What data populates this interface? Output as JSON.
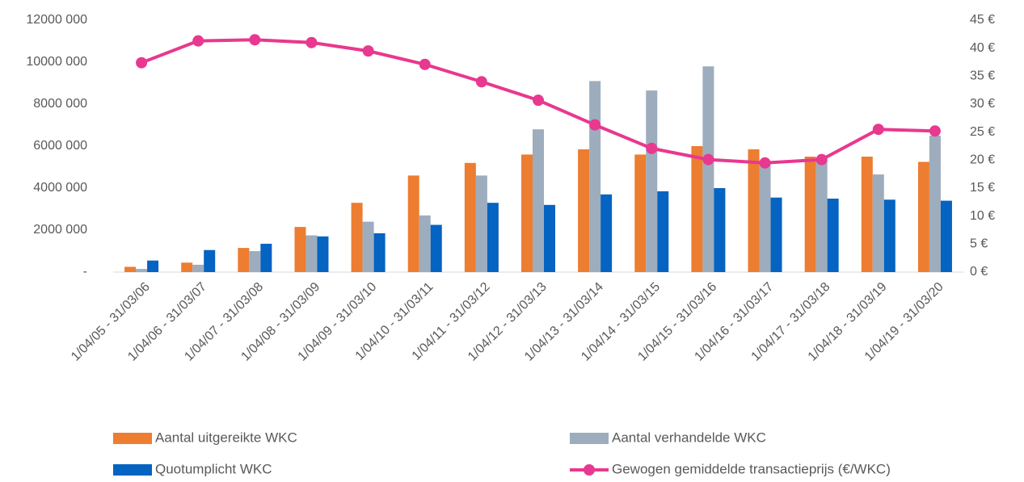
{
  "chart_data": {
    "type": "bar",
    "categories": [
      "1/04/05 - 31/03/06",
      "1/04/06 - 31/03/07",
      "1/04/07 - 31/03/08",
      "1/04/08 - 31/03/09",
      "1/04/09 - 31/03/10",
      "1/04/10 - 31/03/11",
      "1/04/11 - 31/03/12",
      "1/04/12 - 31/03/13",
      "1/04/13 - 31/03/14",
      "1/04/14 - 31/03/15",
      "1/04/15 - 31/03/16",
      "1/04/16 - 31/03/17",
      "1/04/17 - 31/03/18",
      "1/04/18 - 31/03/19",
      "1/04/19 - 31/03/20"
    ],
    "series": [
      {
        "name": "Aantal uitgereikte WKC",
        "color": "#ed7d31",
        "type": "bar",
        "values": [
          250000,
          450000,
          1150000,
          2150000,
          3300000,
          4600000,
          5200000,
          5600000,
          5850000,
          5600000,
          6000000,
          5850000,
          5500000,
          5500000,
          5250000
        ]
      },
      {
        "name": "Aantal verhandelde WKC",
        "color": "#9dadbd",
        "type": "bar",
        "values": [
          150000,
          350000,
          1000000,
          1750000,
          2400000,
          2700000,
          4600000,
          6800000,
          9100000,
          8650000,
          9800000,
          5200000,
          5400000,
          4650000,
          6500000
        ]
      },
      {
        "name": "Quotumplicht WKC",
        "color": "#0563c1",
        "type": "bar",
        "values": [
          550000,
          1050000,
          1350000,
          1700000,
          1850000,
          2250000,
          3300000,
          3200000,
          3700000,
          3850000,
          4000000,
          3550000,
          3500000,
          3450000,
          3400000
        ]
      },
      {
        "name": "Gewogen gemiddelde transactieprijs (€/WKC)",
        "color": "#e8388f",
        "type": "line",
        "axis": "y2",
        "values": [
          37.4,
          41.3,
          41.5,
          41.0,
          39.5,
          37.1,
          34.0,
          30.7,
          26.3,
          22.1,
          20.1,
          19.5,
          20.1,
          25.5,
          25.2
        ]
      }
    ],
    "ylim": [
      0,
      12000000
    ],
    "yticks": [
      {
        "value": 0,
        "label": "-"
      },
      {
        "value": 2000000,
        "label": "2000 000"
      },
      {
        "value": 4000000,
        "label": "4000 000"
      },
      {
        "value": 6000000,
        "label": "6000 000"
      },
      {
        "value": 8000000,
        "label": "8000 000"
      },
      {
        "value": 10000000,
        "label": "10000 000"
      },
      {
        "value": 12000000,
        "label": "12000 000"
      }
    ],
    "y2lim": [
      0,
      45
    ],
    "y2ticks": [
      {
        "value": 0,
        "label": "0 €"
      },
      {
        "value": 5,
        "label": "5 €"
      },
      {
        "value": 10,
        "label": "10 €"
      },
      {
        "value": 15,
        "label": "15 €"
      },
      {
        "value": 20,
        "label": "20 €"
      },
      {
        "value": 25,
        "label": "25 €"
      },
      {
        "value": 30,
        "label": "30 €"
      },
      {
        "value": 35,
        "label": "35 €"
      },
      {
        "value": 40,
        "label": "40 €"
      },
      {
        "value": 45,
        "label": "45 €"
      }
    ],
    "grid": false,
    "legend": "bottom"
  }
}
